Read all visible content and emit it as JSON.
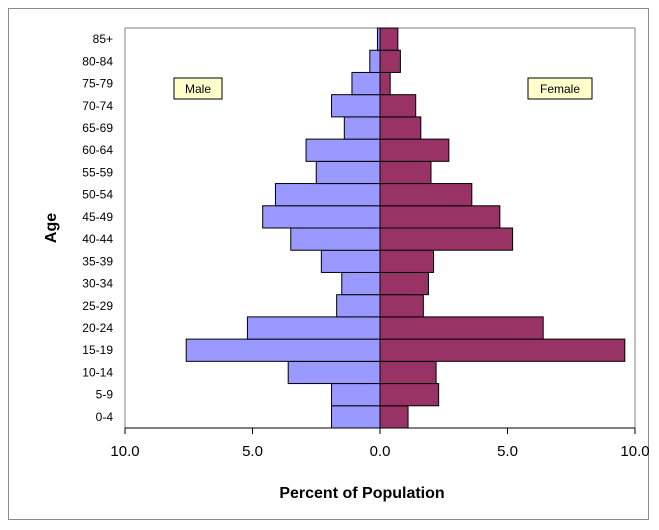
{
  "chart_data": {
    "type": "bar",
    "orientation": "horizontal",
    "chart_subtype": "population-pyramid",
    "title": "",
    "xlabel": "Percent of Population",
    "ylabel": "Age",
    "xlim": [
      -10,
      10
    ],
    "x_ticks": [
      "10.0",
      "5.0",
      "0.0",
      "5.0",
      "10.0"
    ],
    "grid": false,
    "categories": [
      "0-4",
      "5-9",
      "10-14",
      "15-19",
      "20-24",
      "25-29",
      "30-34",
      "35-39",
      "40-44",
      "45-49",
      "50-54",
      "55-59",
      "60-64",
      "65-69",
      "70-74",
      "75-79",
      "80-84",
      "85+"
    ],
    "series": [
      {
        "name": "Male",
        "color": "#9999ff",
        "values": [
          1.9,
          1.9,
          3.6,
          7.6,
          5.2,
          1.7,
          1.5,
          2.3,
          3.5,
          4.6,
          4.1,
          2.5,
          2.9,
          1.4,
          1.9,
          1.1,
          0.4,
          0.1
        ]
      },
      {
        "name": "Female",
        "color": "#993366",
        "values": [
          1.1,
          2.3,
          2.2,
          9.6,
          6.4,
          1.7,
          1.9,
          2.1,
          5.2,
          4.7,
          3.6,
          2.0,
          2.7,
          1.6,
          1.4,
          0.4,
          0.8,
          0.7
        ]
      }
    ],
    "legend_labels": {
      "male": "Male",
      "female": "Female"
    }
  }
}
